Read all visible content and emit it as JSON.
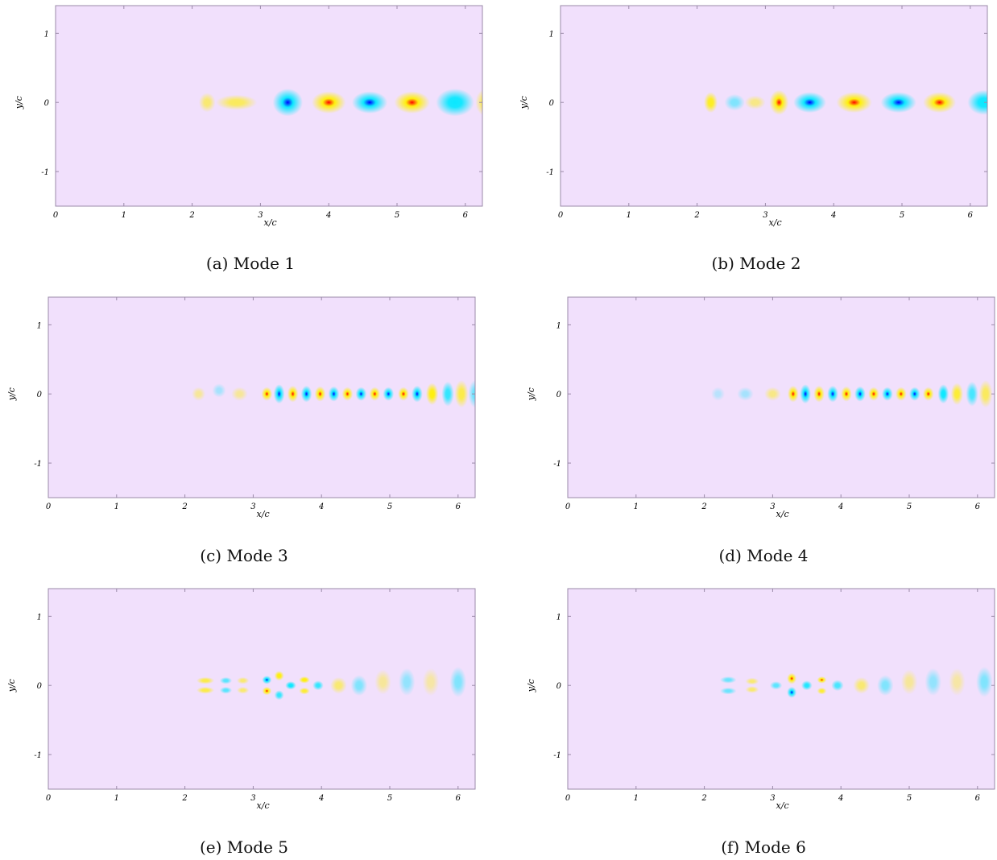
{
  "chart_data": [
    {
      "type": "heatmap",
      "caption": "(a)  Mode 1",
      "xlabel": "x/c",
      "ylabel": "y/c",
      "xlim": [
        0,
        6.25
      ],
      "ylim": [
        -1.5,
        1.4
      ],
      "xticks": [
        0,
        1,
        2,
        3,
        4,
        5,
        6
      ],
      "yticks": [
        1,
        0,
        -1
      ],
      "xtick_labels": [
        "0",
        "1",
        "2",
        "3",
        "4",
        "5",
        "6"
      ],
      "ytick_labels": [
        "1",
        "0",
        "-1"
      ],
      "blobs": [
        {
          "x": 2.22,
          "y": 0.0,
          "v": 0.35,
          "rx": 0.12,
          "ry": 0.14
        },
        {
          "x": 2.65,
          "y": 0.0,
          "v": 0.4,
          "rx": 0.3,
          "ry": 0.11
        },
        {
          "x": 3.4,
          "y": 0.0,
          "v": -0.85,
          "rx": 0.22,
          "ry": 0.2
        },
        {
          "x": 4.0,
          "y": 0.0,
          "v": 1.0,
          "rx": 0.25,
          "ry": 0.16
        },
        {
          "x": 4.6,
          "y": 0.0,
          "v": -0.9,
          "rx": 0.26,
          "ry": 0.16
        },
        {
          "x": 5.22,
          "y": 0.0,
          "v": 0.85,
          "rx": 0.26,
          "ry": 0.16
        },
        {
          "x": 5.85,
          "y": 0.0,
          "v": -0.6,
          "rx": 0.28,
          "ry": 0.2
        },
        {
          "x": 6.3,
          "y": 0.0,
          "v": 0.45,
          "rx": 0.15,
          "ry": 0.2
        }
      ]
    },
    {
      "type": "heatmap",
      "caption": "(b)  Mode 2",
      "xlabel": "x/c",
      "ylabel": "y/c",
      "xlim": [
        0,
        6.25
      ],
      "ylim": [
        -1.5,
        1.4
      ],
      "xticks": [
        0,
        1,
        2,
        3,
        4,
        5,
        6
      ],
      "yticks": [
        1,
        0,
        -1
      ],
      "xtick_labels": [
        "0",
        "1",
        "2",
        "3",
        "4",
        "5",
        "6"
      ],
      "ytick_labels": [
        "1",
        "0",
        "-1"
      ],
      "blobs": [
        {
          "x": 2.2,
          "y": 0.0,
          "v": 0.55,
          "rx": 0.1,
          "ry": 0.15
        },
        {
          "x": 2.55,
          "y": 0.0,
          "v": -0.3,
          "rx": 0.15,
          "ry": 0.12
        },
        {
          "x": 2.85,
          "y": 0.0,
          "v": 0.3,
          "rx": 0.15,
          "ry": 0.1
        },
        {
          "x": 3.2,
          "y": 0.0,
          "v": 1.0,
          "rx": 0.14,
          "ry": 0.18
        },
        {
          "x": 3.65,
          "y": 0.0,
          "v": -0.95,
          "rx": 0.24,
          "ry": 0.15
        },
        {
          "x": 4.3,
          "y": 0.0,
          "v": 1.0,
          "rx": 0.26,
          "ry": 0.15
        },
        {
          "x": 4.95,
          "y": 0.0,
          "v": -0.95,
          "rx": 0.26,
          "ry": 0.15
        },
        {
          "x": 5.55,
          "y": 0.0,
          "v": 0.8,
          "rx": 0.24,
          "ry": 0.15
        },
        {
          "x": 6.2,
          "y": 0.0,
          "v": -0.6,
          "rx": 0.24,
          "ry": 0.18
        }
      ]
    },
    {
      "type": "heatmap",
      "caption": "(c)  Mode 3",
      "xlabel": "x/c",
      "ylabel": "y/c",
      "xlim": [
        0,
        6.25
      ],
      "ylim": [
        -1.5,
        1.4
      ],
      "xticks": [
        0,
        1,
        2,
        3,
        4,
        5,
        6
      ],
      "yticks": [
        1,
        0,
        -1
      ],
      "xtick_labels": [
        "0",
        "1",
        "2",
        "3",
        "4",
        "5",
        "6"
      ],
      "ytick_labels": [
        "1",
        "0",
        "-1"
      ],
      "blobs": [
        {
          "x": 2.2,
          "y": 0.0,
          "v": 0.25,
          "rx": 0.1,
          "ry": 0.1
        },
        {
          "x": 2.5,
          "y": 0.05,
          "v": -0.2,
          "rx": 0.1,
          "ry": 0.1
        },
        {
          "x": 2.8,
          "y": 0.0,
          "v": 0.25,
          "rx": 0.12,
          "ry": 0.1
        },
        {
          "x": 3.2,
          "y": 0.0,
          "v": 1.0,
          "rx": 0.08,
          "ry": 0.1
        },
        {
          "x": 3.38,
          "y": 0.0,
          "v": -1.0,
          "rx": 0.08,
          "ry": 0.14
        },
        {
          "x": 3.58,
          "y": 0.0,
          "v": 0.9,
          "rx": 0.08,
          "ry": 0.12
        },
        {
          "x": 3.78,
          "y": 0.0,
          "v": -0.95,
          "rx": 0.08,
          "ry": 0.12
        },
        {
          "x": 3.98,
          "y": 0.0,
          "v": 0.9,
          "rx": 0.08,
          "ry": 0.11
        },
        {
          "x": 4.18,
          "y": 0.0,
          "v": -0.95,
          "rx": 0.08,
          "ry": 0.11
        },
        {
          "x": 4.38,
          "y": 0.0,
          "v": 0.9,
          "rx": 0.08,
          "ry": 0.1
        },
        {
          "x": 4.58,
          "y": 0.0,
          "v": -0.9,
          "rx": 0.08,
          "ry": 0.1
        },
        {
          "x": 4.78,
          "y": 0.0,
          "v": 0.85,
          "rx": 0.08,
          "ry": 0.1
        },
        {
          "x": 4.98,
          "y": 0.0,
          "v": -0.85,
          "rx": 0.08,
          "ry": 0.1
        },
        {
          "x": 5.2,
          "y": 0.0,
          "v": 0.8,
          "rx": 0.08,
          "ry": 0.1
        },
        {
          "x": 5.4,
          "y": 0.0,
          "v": -0.75,
          "rx": 0.08,
          "ry": 0.12
        },
        {
          "x": 5.62,
          "y": 0.0,
          "v": 0.6,
          "rx": 0.09,
          "ry": 0.16
        },
        {
          "x": 5.85,
          "y": 0.0,
          "v": -0.5,
          "rx": 0.09,
          "ry": 0.18
        },
        {
          "x": 6.05,
          "y": 0.0,
          "v": 0.45,
          "rx": 0.1,
          "ry": 0.2
        },
        {
          "x": 6.25,
          "y": 0.0,
          "v": -0.35,
          "rx": 0.1,
          "ry": 0.2
        }
      ]
    },
    {
      "type": "heatmap",
      "caption": "(d)  Mode 4",
      "xlabel": "x/c",
      "ylabel": "y/c",
      "xlim": [
        0,
        6.25
      ],
      "ylim": [
        -1.5,
        1.4
      ],
      "xticks": [
        0,
        1,
        2,
        3,
        4,
        5,
        6
      ],
      "yticks": [
        1,
        0,
        -1
      ],
      "xtick_labels": [
        "0",
        "1",
        "2",
        "3",
        "4",
        "5",
        "6"
      ],
      "ytick_labels": [
        "1",
        "0",
        "-1"
      ],
      "blobs": [
        {
          "x": 2.2,
          "y": 0.0,
          "v": -0.15,
          "rx": 0.1,
          "ry": 0.1
        },
        {
          "x": 2.6,
          "y": 0.0,
          "v": -0.2,
          "rx": 0.12,
          "ry": 0.1
        },
        {
          "x": 3.0,
          "y": 0.0,
          "v": 0.3,
          "rx": 0.12,
          "ry": 0.1
        },
        {
          "x": 3.3,
          "y": 0.0,
          "v": 1.0,
          "rx": 0.08,
          "ry": 0.12
        },
        {
          "x": 3.48,
          "y": 0.0,
          "v": -1.0,
          "rx": 0.08,
          "ry": 0.14
        },
        {
          "x": 3.68,
          "y": 0.0,
          "v": 0.9,
          "rx": 0.08,
          "ry": 0.12
        },
        {
          "x": 3.88,
          "y": 0.0,
          "v": -0.95,
          "rx": 0.08,
          "ry": 0.12
        },
        {
          "x": 4.08,
          "y": 0.0,
          "v": 0.9,
          "rx": 0.08,
          "ry": 0.11
        },
        {
          "x": 4.28,
          "y": 0.0,
          "v": -0.9,
          "rx": 0.08,
          "ry": 0.11
        },
        {
          "x": 4.48,
          "y": 0.0,
          "v": 0.85,
          "rx": 0.08,
          "ry": 0.1
        },
        {
          "x": 4.68,
          "y": 0.0,
          "v": -0.85,
          "rx": 0.08,
          "ry": 0.1
        },
        {
          "x": 4.88,
          "y": 0.0,
          "v": 0.8,
          "rx": 0.08,
          "ry": 0.1
        },
        {
          "x": 5.08,
          "y": 0.0,
          "v": -0.8,
          "rx": 0.08,
          "ry": 0.1
        },
        {
          "x": 5.28,
          "y": 0.0,
          "v": 0.7,
          "rx": 0.08,
          "ry": 0.1
        },
        {
          "x": 5.5,
          "y": 0.0,
          "v": -0.6,
          "rx": 0.08,
          "ry": 0.14
        },
        {
          "x": 5.7,
          "y": 0.0,
          "v": 0.5,
          "rx": 0.09,
          "ry": 0.16
        },
        {
          "x": 5.92,
          "y": 0.0,
          "v": -0.45,
          "rx": 0.09,
          "ry": 0.18
        },
        {
          "x": 6.12,
          "y": 0.0,
          "v": 0.4,
          "rx": 0.1,
          "ry": 0.2
        }
      ]
    },
    {
      "type": "heatmap",
      "caption": "(e)  Mode 5",
      "xlabel": "x/c",
      "ylabel": "y/c",
      "xlim": [
        0,
        6.25
      ],
      "ylim": [
        -1.5,
        1.4
      ],
      "xticks": [
        0,
        1,
        2,
        3,
        4,
        5,
        6
      ],
      "yticks": [
        1,
        0,
        -1
      ],
      "xtick_labels": [
        "0",
        "1",
        "2",
        "3",
        "4",
        "5",
        "6"
      ],
      "ytick_labels": [
        "1",
        "0",
        "-1"
      ],
      "blobs": [
        {
          "x": 2.3,
          "y": 0.07,
          "v": 0.45,
          "rx": 0.13,
          "ry": 0.05
        },
        {
          "x": 2.3,
          "y": -0.07,
          "v": 0.45,
          "rx": 0.13,
          "ry": 0.05
        },
        {
          "x": 2.6,
          "y": 0.07,
          "v": -0.4,
          "rx": 0.09,
          "ry": 0.05
        },
        {
          "x": 2.6,
          "y": -0.07,
          "v": -0.4,
          "rx": 0.09,
          "ry": 0.05
        },
        {
          "x": 2.85,
          "y": 0.07,
          "v": 0.35,
          "rx": 0.09,
          "ry": 0.05
        },
        {
          "x": 2.85,
          "y": -0.07,
          "v": 0.35,
          "rx": 0.09,
          "ry": 0.05
        },
        {
          "x": 3.2,
          "y": 0.08,
          "v": -1.0,
          "rx": 0.07,
          "ry": 0.06
        },
        {
          "x": 3.2,
          "y": -0.08,
          "v": 1.0,
          "rx": 0.07,
          "ry": 0.06
        },
        {
          "x": 3.38,
          "y": 0.14,
          "v": 0.6,
          "rx": 0.07,
          "ry": 0.07
        },
        {
          "x": 3.38,
          "y": -0.14,
          "v": -0.5,
          "rx": 0.07,
          "ry": 0.07
        },
        {
          "x": 3.55,
          "y": 0.0,
          "v": -0.6,
          "rx": 0.08,
          "ry": 0.06
        },
        {
          "x": 3.75,
          "y": 0.08,
          "v": 0.6,
          "rx": 0.08,
          "ry": 0.05
        },
        {
          "x": 3.75,
          "y": -0.08,
          "v": 0.5,
          "rx": 0.08,
          "ry": 0.05
        },
        {
          "x": 3.95,
          "y": 0.0,
          "v": -0.5,
          "rx": 0.08,
          "ry": 0.07
        },
        {
          "x": 4.25,
          "y": 0.0,
          "v": 0.35,
          "rx": 0.12,
          "ry": 0.12
        },
        {
          "x": 4.55,
          "y": 0.0,
          "v": -0.3,
          "rx": 0.12,
          "ry": 0.15
        },
        {
          "x": 4.9,
          "y": 0.05,
          "v": 0.25,
          "rx": 0.12,
          "ry": 0.18
        },
        {
          "x": 5.25,
          "y": 0.05,
          "v": -0.25,
          "rx": 0.12,
          "ry": 0.2
        },
        {
          "x": 5.6,
          "y": 0.05,
          "v": 0.22,
          "rx": 0.12,
          "ry": 0.2
        },
        {
          "x": 6.0,
          "y": 0.05,
          "v": -0.3,
          "rx": 0.12,
          "ry": 0.22
        }
      ]
    },
    {
      "type": "heatmap",
      "caption": "(f)  Mode 6",
      "xlabel": "x/c",
      "ylabel": "y/c",
      "xlim": [
        0,
        6.25
      ],
      "ylim": [
        -1.5,
        1.4
      ],
      "xticks": [
        0,
        1,
        2,
        3,
        4,
        5,
        6
      ],
      "yticks": [
        1,
        0,
        -1
      ],
      "xtick_labels": [
        "0",
        "1",
        "2",
        "3",
        "4",
        "5",
        "6"
      ],
      "ytick_labels": [
        "1",
        "0",
        "-1"
      ],
      "blobs": [
        {
          "x": 2.35,
          "y": 0.08,
          "v": -0.35,
          "rx": 0.12,
          "ry": 0.05
        },
        {
          "x": 2.35,
          "y": -0.08,
          "v": -0.35,
          "rx": 0.12,
          "ry": 0.05
        },
        {
          "x": 2.7,
          "y": 0.06,
          "v": 0.35,
          "rx": 0.1,
          "ry": 0.05
        },
        {
          "x": 2.7,
          "y": -0.06,
          "v": 0.35,
          "rx": 0.1,
          "ry": 0.05
        },
        {
          "x": 3.05,
          "y": 0.0,
          "v": -0.4,
          "rx": 0.09,
          "ry": 0.06
        },
        {
          "x": 3.28,
          "y": 0.1,
          "v": 1.0,
          "rx": 0.07,
          "ry": 0.08
        },
        {
          "x": 3.28,
          "y": -0.1,
          "v": -1.0,
          "rx": 0.07,
          "ry": 0.08
        },
        {
          "x": 3.5,
          "y": 0.0,
          "v": -0.55,
          "rx": 0.08,
          "ry": 0.07
        },
        {
          "x": 3.72,
          "y": 0.08,
          "v": 0.8,
          "rx": 0.07,
          "ry": 0.05
        },
        {
          "x": 3.72,
          "y": -0.08,
          "v": 0.5,
          "rx": 0.07,
          "ry": 0.05
        },
        {
          "x": 3.95,
          "y": 0.0,
          "v": -0.45,
          "rx": 0.09,
          "ry": 0.08
        },
        {
          "x": 4.3,
          "y": 0.0,
          "v": 0.35,
          "rx": 0.12,
          "ry": 0.12
        },
        {
          "x": 4.65,
          "y": 0.0,
          "v": -0.3,
          "rx": 0.12,
          "ry": 0.15
        },
        {
          "x": 5.0,
          "y": 0.05,
          "v": 0.25,
          "rx": 0.12,
          "ry": 0.18
        },
        {
          "x": 5.35,
          "y": 0.05,
          "v": -0.25,
          "rx": 0.12,
          "ry": 0.2
        },
        {
          "x": 5.7,
          "y": 0.05,
          "v": 0.22,
          "rx": 0.12,
          "ry": 0.2
        },
        {
          "x": 6.1,
          "y": 0.05,
          "v": -0.3,
          "rx": 0.12,
          "ry": 0.22
        }
      ]
    }
  ],
  "colors": {
    "background": "#f1e0fc",
    "positive_mid": "#fff000",
    "positive_peak": "#ff0000",
    "negative_mid": "#00e8ff",
    "negative_peak": "#0000ff",
    "frame": "#9a8aa8"
  }
}
